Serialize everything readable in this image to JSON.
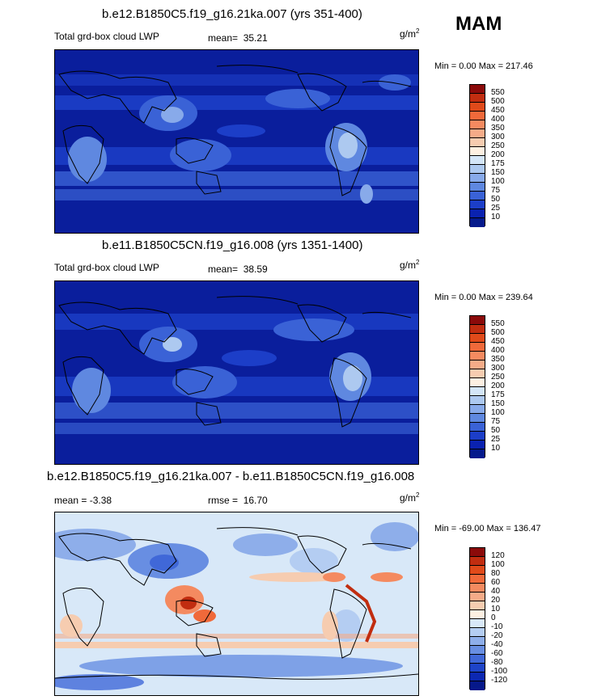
{
  "season": "MAM",
  "units_base": "g/m",
  "units_exp": "2",
  "panels": [
    {
      "title": "b.e12.B1850C5.f19_g16.21ka.007 (yrs 351-400)",
      "left_label": "Total grd-box cloud LWP",
      "stat_label": "mean=",
      "stat_value": "35.21",
      "minmax": "Min =   0.00 Max = 217.46",
      "ticks": [
        "550",
        "500",
        "450",
        "400",
        "350",
        "300",
        "250",
        "200",
        "175",
        "150",
        "100",
        "75",
        "50",
        "25",
        "10"
      ]
    },
    {
      "title": "b.e11.B1850C5CN.f19_g16.008 (yrs 1351-1400)",
      "left_label": "Total grd-box cloud LWP",
      "stat_label": "mean=",
      "stat_value": "38.59",
      "minmax": "Min =   0.00 Max = 239.64",
      "ticks": [
        "550",
        "500",
        "450",
        "400",
        "350",
        "300",
        "250",
        "200",
        "175",
        "150",
        "100",
        "75",
        "50",
        "25",
        "10"
      ]
    },
    {
      "title": "b.e12.B1850C5.f19_g16.21ka.007 - b.e11.B1850C5CN.f19_g16.008",
      "left_label": "mean =  -3.38",
      "stat_label": "rmse =",
      "stat_value": "16.70",
      "minmax": "Min = -69.00 Max = 136.47",
      "ticks": [
        "120",
        "100",
        "80",
        "60",
        "40",
        "20",
        "10",
        "0",
        "-10",
        "-20",
        "-40",
        "-60",
        "-80",
        "-100",
        "-120"
      ]
    }
  ],
  "colors": {
    "abs_scale": [
      "#8b0a0a",
      "#c12d10",
      "#e04a1a",
      "#f0693a",
      "#f48a60",
      "#f5ab88",
      "#f6ccb0",
      "#fdf0e2",
      "#d4e6f8",
      "#adc9f0",
      "#88aaea",
      "#5f88e0",
      "#3a62d6",
      "#1c3ec8",
      "#0a22b0",
      "#051a8c"
    ],
    "diff_scale": [
      "#8b0a0a",
      "#c12d10",
      "#e04a1a",
      "#f0693a",
      "#f48a60",
      "#f5ab88",
      "#f6ccb0",
      "#fdf0e2",
      "#d8e8f8",
      "#b4cdf2",
      "#8eaeea",
      "#688ee2",
      "#4068d8",
      "#1e44c8",
      "#0c28b2",
      "#06188a"
    ]
  },
  "chart_data": [
    {
      "type": "heatmap",
      "title": "b.e12.B1850C5.f19_g16.21ka.007 (yrs 351-400)",
      "variable": "Total grd-box cloud LWP",
      "units": "g/m2",
      "season": "MAM",
      "mean": 35.21,
      "min": 0.0,
      "max": 217.46,
      "levels": [
        10,
        25,
        50,
        75,
        100,
        150,
        175,
        200,
        250,
        300,
        350,
        400,
        450,
        500,
        550
      ]
    },
    {
      "type": "heatmap",
      "title": "b.e11.B1850C5CN.f19_g16.008 (yrs 1351-1400)",
      "variable": "Total grd-box cloud LWP",
      "units": "g/m2",
      "season": "MAM",
      "mean": 38.59,
      "min": 0.0,
      "max": 239.64,
      "levels": [
        10,
        25,
        50,
        75,
        100,
        150,
        175,
        200,
        250,
        300,
        350,
        400,
        450,
        500,
        550
      ]
    },
    {
      "type": "heatmap",
      "title": "b.e12.B1850C5.f19_g16.21ka.007 - b.e11.B1850C5CN.f19_g16.008",
      "units": "g/m2",
      "season": "MAM",
      "mean": -3.38,
      "rmse": 16.7,
      "min": -69.0,
      "max": 136.47,
      "levels": [
        -120,
        -100,
        -80,
        -60,
        -40,
        -20,
        -10,
        0,
        10,
        20,
        40,
        60,
        80,
        100,
        120
      ]
    }
  ]
}
